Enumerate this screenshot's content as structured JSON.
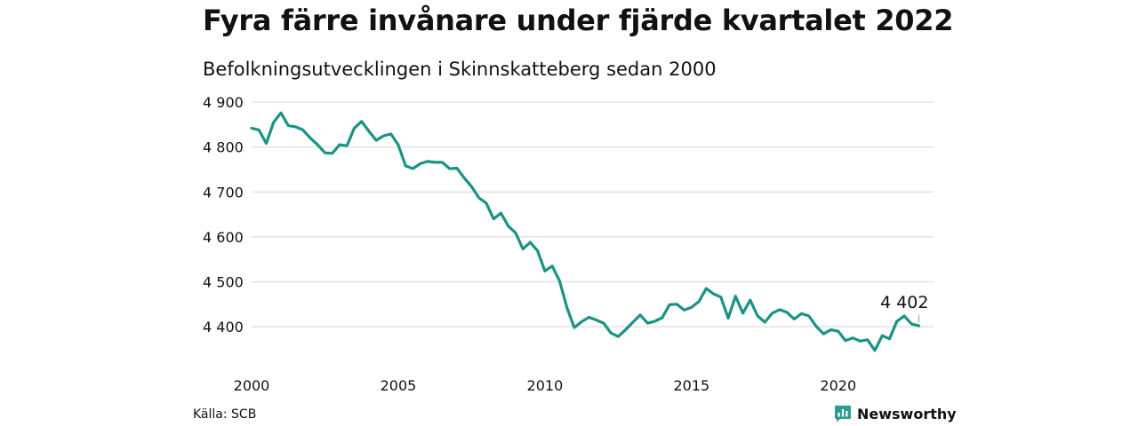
{
  "title": "Fyra färre invånare under fjärde kvartalet 2022",
  "subtitle": "Befolkningsutvecklingen i Skinnskatteberg sedan 2000",
  "source": "Källa: SCB",
  "brand": {
    "name": "Newsworthy",
    "icon": "newsworthy-logo-icon",
    "color": "#2a9d8f"
  },
  "chart_data": {
    "type": "line",
    "x_start": 2000.0,
    "x_step": 0.25,
    "xlim": [
      2000,
      2023.25
    ],
    "ylim": [
      4335,
      4910
    ],
    "y_ticks": [
      4400,
      4500,
      4600,
      4700,
      4800,
      4900
    ],
    "y_tick_labels": [
      "4 400",
      "4 500",
      "4 600",
      "4 700",
      "4 800",
      "4 900"
    ],
    "x_ticks": [
      2000,
      2005,
      2010,
      2015,
      2020
    ],
    "x_tick_labels": [
      "2000",
      "2005",
      "2010",
      "2015",
      "2020"
    ],
    "grid": true,
    "line_color": "#1a9384",
    "series": [
      {
        "values": [
          4842,
          4838,
          4808,
          4855,
          4876,
          4848,
          4845,
          4838,
          4820,
          4805,
          4787,
          4786,
          4805,
          4803,
          4842,
          4857,
          4835,
          4815,
          4825,
          4829,
          4805,
          4758,
          4752,
          4763,
          4768,
          4766,
          4766,
          4752,
          4753,
          4731,
          4712,
          4687,
          4675,
          4640,
          4653,
          4624,
          4609,
          4573,
          4588,
          4569,
          4524,
          4535,
          4502,
          4443,
          4398,
          4411,
          4421,
          4415,
          4408,
          4386,
          4378,
          4393,
          4410,
          4426,
          4408,
          4412,
          4420,
          4449,
          4450,
          4437,
          4443,
          4456,
          4485,
          4473,
          4466,
          4419,
          4468,
          4430,
          4459,
          4424,
          4410,
          4430,
          4438,
          4432,
          4417,
          4429,
          4424,
          4401,
          4384,
          4393,
          4390,
          4369,
          4375,
          4368,
          4371,
          4347,
          4380,
          4373,
          4412,
          4424,
          4406,
          4402
        ]
      }
    ],
    "annotation": {
      "label": "4 402",
      "value": 4402
    }
  }
}
